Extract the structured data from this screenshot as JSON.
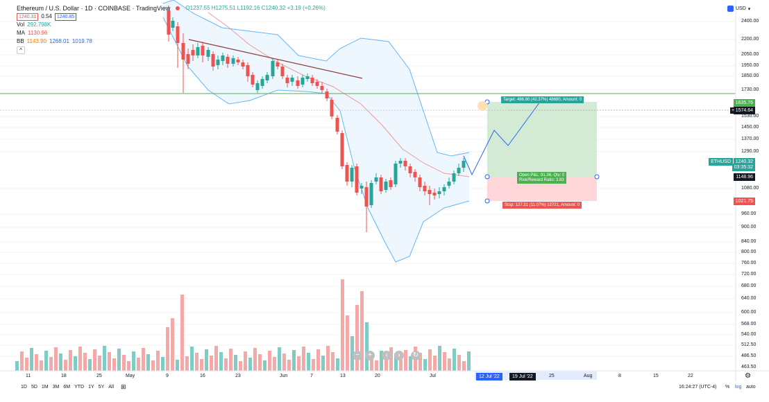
{
  "header": {
    "title": "Ethereum / U.S. Dollar · 1D · COINBASE · TradingView",
    "ohlc": "O1237.55 H1275.51 L1192.16 C1240.32 +3.19 (+0.26%)",
    "sell_price": "1240.31",
    "spread": "0.54",
    "buy_price": "1240.85",
    "currency": "USD"
  },
  "indicators": {
    "vol_label": "Vol",
    "vol_value": "292.798K",
    "ma_label": "MA",
    "ma_value": "1130.96",
    "bb_label": "BB",
    "bb_values": [
      "1143.90",
      "1268.01",
      "1019.78"
    ]
  },
  "y_axis_ticks": [
    "2400.00",
    "2200.00",
    "2050.00",
    "1950.00",
    "1850.00",
    "1730.00",
    "1530.00",
    "1450.00",
    "1370.00",
    "1290.00",
    "1080.00",
    "960.00",
    "900.00",
    "840.00",
    "800.00",
    "760.00",
    "720.00",
    "680.00",
    "640.00",
    "600.00",
    "568.00",
    "540.00",
    "512.50",
    "486.50",
    "463.50"
  ],
  "x_axis_ticks": [
    "11",
    "18",
    "25",
    "May",
    "9",
    "16",
    "23",
    "Jun",
    "7",
    "13",
    "20",
    "Jul",
    "25",
    "Aug",
    "8",
    "15",
    "22"
  ],
  "price_badges": {
    "target_level": "1635.76",
    "crosshair_level": "1574.64",
    "symbol": "ETHUSD",
    "last_price": "1240.32",
    "countdown": "03:35:32",
    "entry_level": "1148.96",
    "stop_level": "1021.75"
  },
  "x_badges": {
    "first": "12 Jul '22",
    "second": "19 Jul '22"
  },
  "position": {
    "target_text": "Target: 486.80 (42.37%) 48680, Amount: 0",
    "open_text": "Open P&L: 91.36, Qty: 0",
    "ratio_text": "Risk/Reward Ratio: 3.83",
    "stop_text": "Stop: 127.21 (11.07%) 12721, Amount: 0"
  },
  "controls": {
    "zoom_out": "−",
    "zoom_in": "+",
    "scroll_left": "‹",
    "scroll_right": "›",
    "reset": "↻"
  },
  "timeframes": [
    "1D",
    "5D",
    "1M",
    "3M",
    "6M",
    "YTD",
    "1Y",
    "5Y",
    "All"
  ],
  "footer": {
    "clock": "16:24:27 (UTC-4)",
    "percent": "%",
    "log": "log",
    "auto": "auto"
  },
  "colors": {
    "up": "#26a69a",
    "down": "#ef5350",
    "ma": "#ef9a9a",
    "bb": "#64b5f6",
    "trend": "#8d3a3a",
    "hline": "#4caf50"
  }
}
